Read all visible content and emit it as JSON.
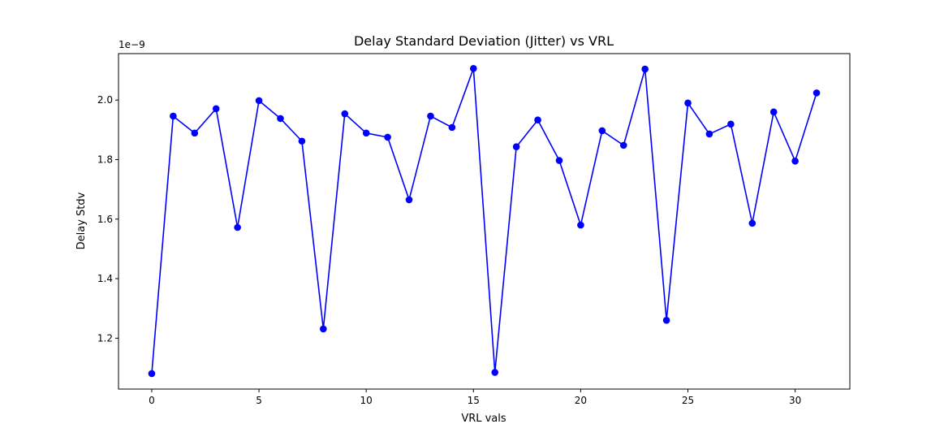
{
  "chart_data": {
    "type": "line",
    "title": "Delay Standard Deviation (Jitter) vs VRL",
    "xlabel": "VRL vals",
    "ylabel": "Delay Stdv",
    "y_offset_label": "1e−9",
    "xlim": [
      -1.55,
      32.55
    ],
    "ylim": [
      1.029,
      2.156
    ],
    "x_ticks": [
      0,
      5,
      10,
      15,
      20,
      25,
      30
    ],
    "x_tick_labels": [
      "0",
      "5",
      "10",
      "15",
      "20",
      "25",
      "30"
    ],
    "y_ticks": [
      1.2,
      1.4,
      1.6,
      1.8,
      2.0
    ],
    "y_tick_labels": [
      "1.2",
      "1.4",
      "1.6",
      "1.8",
      "2.0"
    ],
    "grid": false,
    "series": [
      {
        "color": "#0000ff",
        "marker": "circle",
        "x": [
          0,
          1,
          2,
          3,
          4,
          5,
          6,
          7,
          8,
          9,
          10,
          11,
          12,
          13,
          14,
          15,
          16,
          17,
          18,
          19,
          20,
          21,
          22,
          23,
          24,
          25,
          26,
          27,
          28,
          29,
          30,
          31
        ],
        "values": [
          1.081,
          1.946,
          1.889,
          1.971,
          1.572,
          1.998,
          1.938,
          1.862,
          1.231,
          1.954,
          1.889,
          1.875,
          1.665,
          1.946,
          1.908,
          2.106,
          1.085,
          1.843,
          1.933,
          1.797,
          1.58,
          1.897,
          1.848,
          2.104,
          1.26,
          1.99,
          1.886,
          1.919,
          1.586,
          1.96,
          1.795,
          2.024
        ]
      }
    ]
  }
}
